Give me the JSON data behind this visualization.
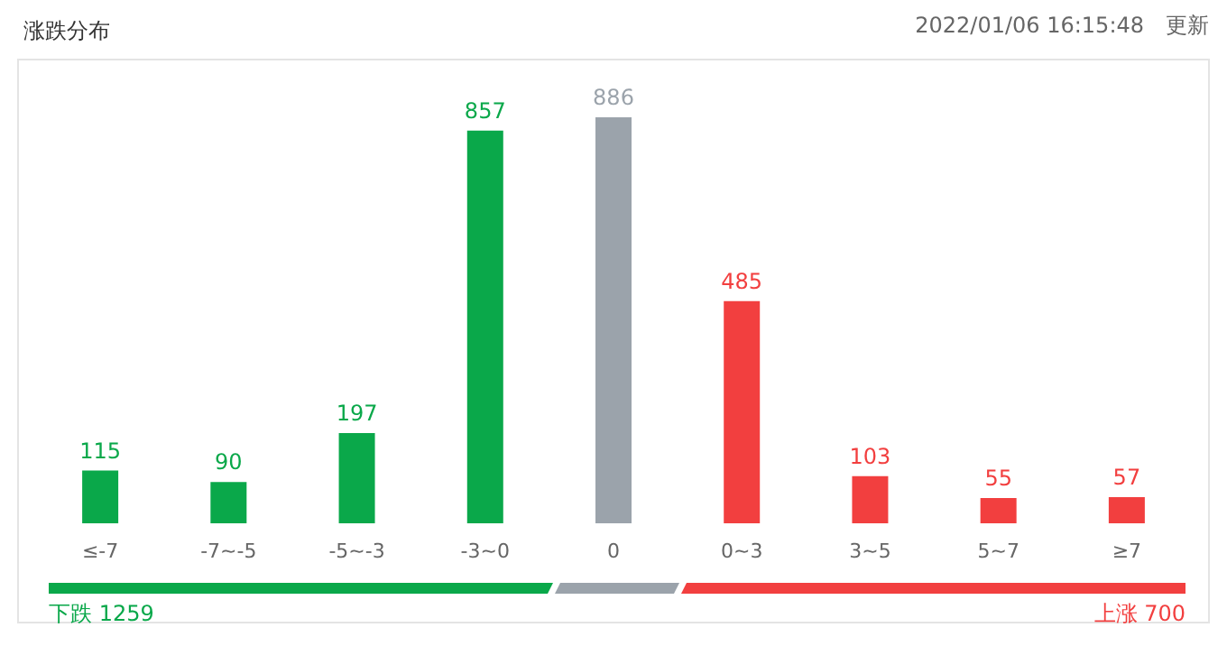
{
  "chart_data": {
    "type": "bar",
    "title": "涨跌分布",
    "annotations": [
      "2022/01/06 16:15:48",
      "更新",
      "下跌 1259",
      "上涨 700"
    ],
    "categories": [
      "≤-7",
      "-7~-5",
      "-5~-3",
      "-3~0",
      "0",
      "0~3",
      "3~5",
      "5~7",
      "≥7"
    ],
    "values": [
      115,
      90,
      197,
      857,
      886,
      485,
      103,
      55,
      57
    ],
    "colors": [
      "#0aa84a",
      "#0aa84a",
      "#0aa84a",
      "#0aa84a",
      "#9ba3ab",
      "#f23f3f",
      "#f23f3f",
      "#f23f3f",
      "#f23f3f"
    ],
    "data_labels": true
  }
}
